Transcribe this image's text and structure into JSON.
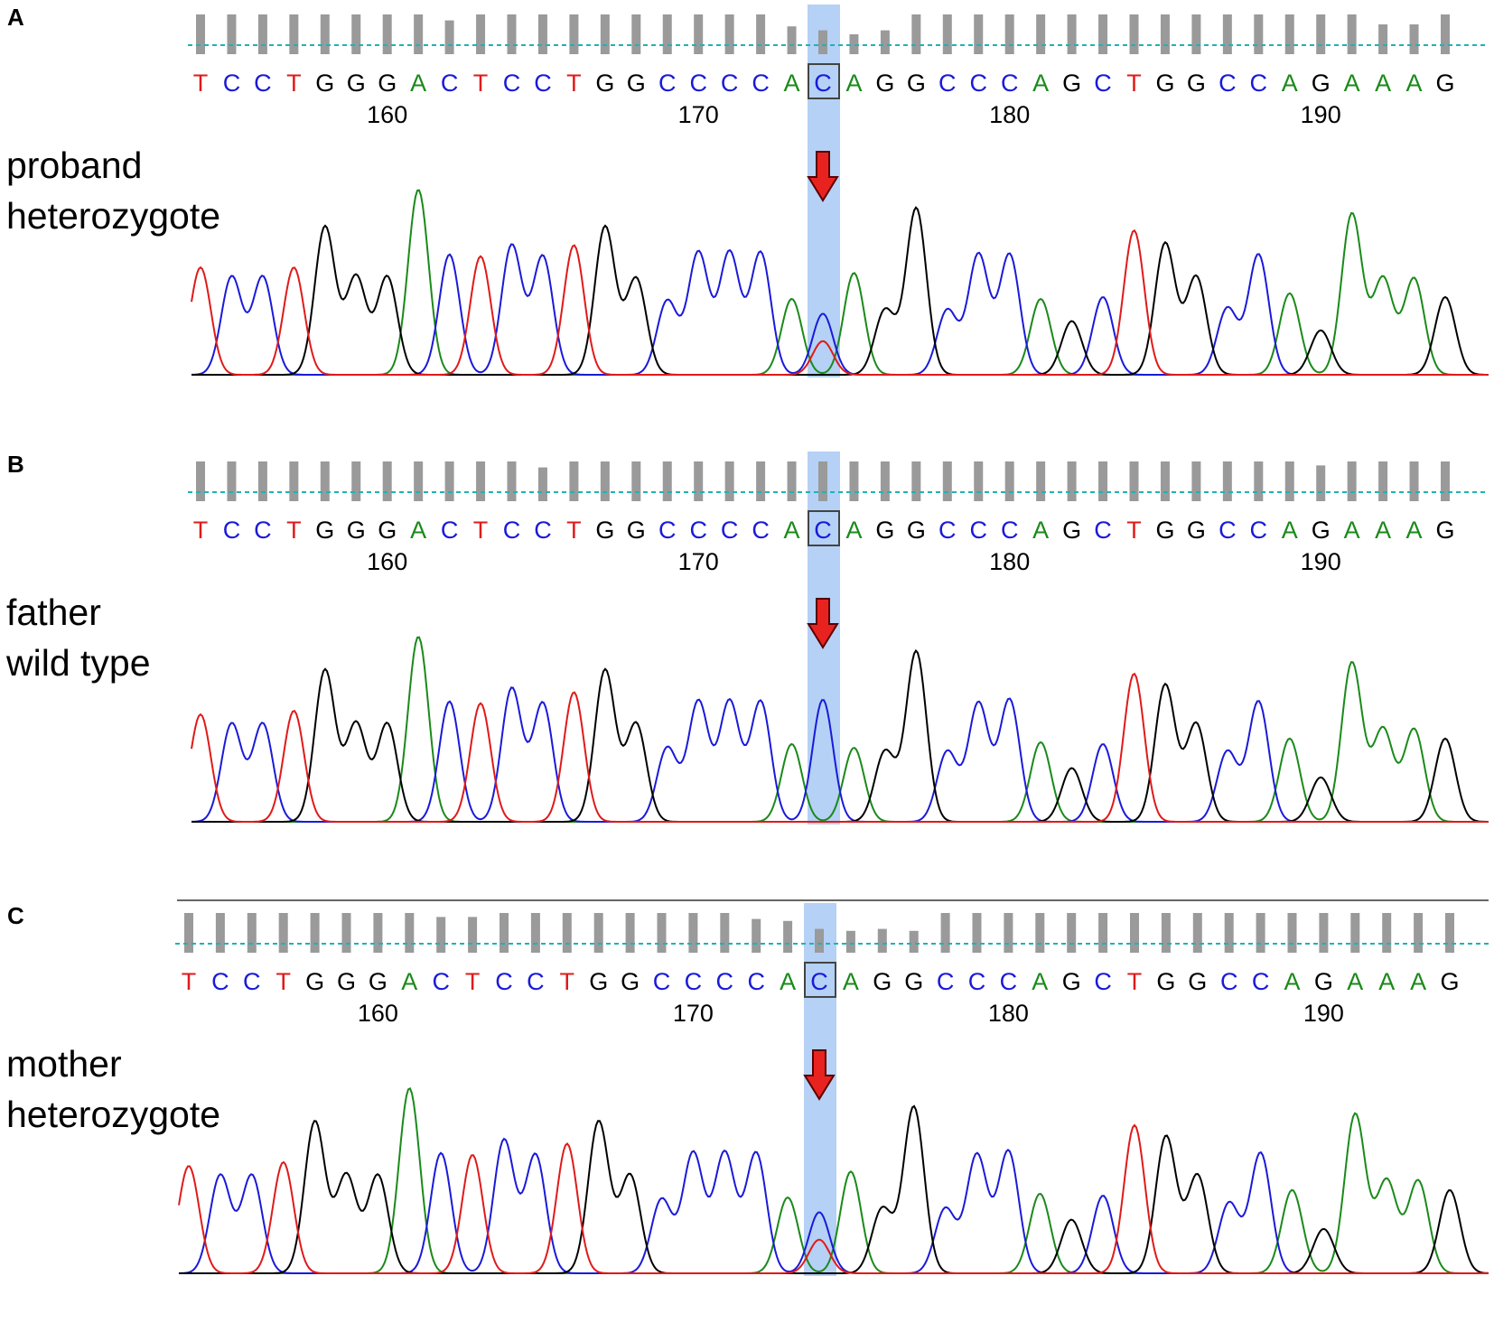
{
  "figure": {
    "panels": [
      {
        "letter": "A",
        "label_line1": "proband",
        "label_line2": "heterozygote"
      },
      {
        "letter": "B",
        "label_line1": "father",
        "label_line2": "wild type"
      },
      {
        "letter": "C",
        "label_line1": "mother",
        "label_line2": "heterozygote"
      }
    ]
  },
  "chart_data": [
    {
      "type": "line",
      "panel": "A",
      "sample": "proband heterozygote",
      "sequence": "TCCTGGGACTCCTGGCCCCACAGGCCCAGCTGGCCAGAAAG",
      "first_position": 154,
      "position_ticks": [
        160,
        170,
        180,
        190
      ],
      "highlighted_position": 174,
      "highlighted_base": "C",
      "secondary_peak_at_highlight": "T",
      "base_colors": {
        "A": "#1a8a1a",
        "C": "#1a1ad9",
        "G": "#000000",
        "T": "#e01a1a"
      },
      "highlight_color": "#9cc2f2",
      "arrow_color": "#e8231f"
    },
    {
      "type": "line",
      "panel": "B",
      "sample": "father wild type",
      "sequence": "TCCTGGGACTCCTGGCCCCACAGGCCCAGCTGGCCAGAAAG",
      "first_position": 154,
      "position_ticks": [
        160,
        170,
        180,
        190
      ],
      "highlighted_position": 174,
      "highlighted_base": "C",
      "secondary_peak_at_highlight": null,
      "base_colors": {
        "A": "#1a8a1a",
        "C": "#1a1ad9",
        "G": "#000000",
        "T": "#e01a1a"
      },
      "highlight_color": "#9cc2f2",
      "arrow_color": "#e8231f"
    },
    {
      "type": "line",
      "panel": "C",
      "sample": "mother heterozygote",
      "sequence": "TCCTGGGACTCCTGGCCCCACAGGCCCAGCTGGCCAGAAAG",
      "first_position": 154,
      "position_ticks": [
        160,
        170,
        180,
        190
      ],
      "highlighted_position": 174,
      "highlighted_base": "C",
      "secondary_peak_at_highlight": "T",
      "base_colors": {
        "A": "#1a8a1a",
        "C": "#1a1ad9",
        "G": "#000000",
        "T": "#e01a1a"
      },
      "highlight_color": "#9cc2f2",
      "arrow_color": "#e8231f"
    }
  ]
}
